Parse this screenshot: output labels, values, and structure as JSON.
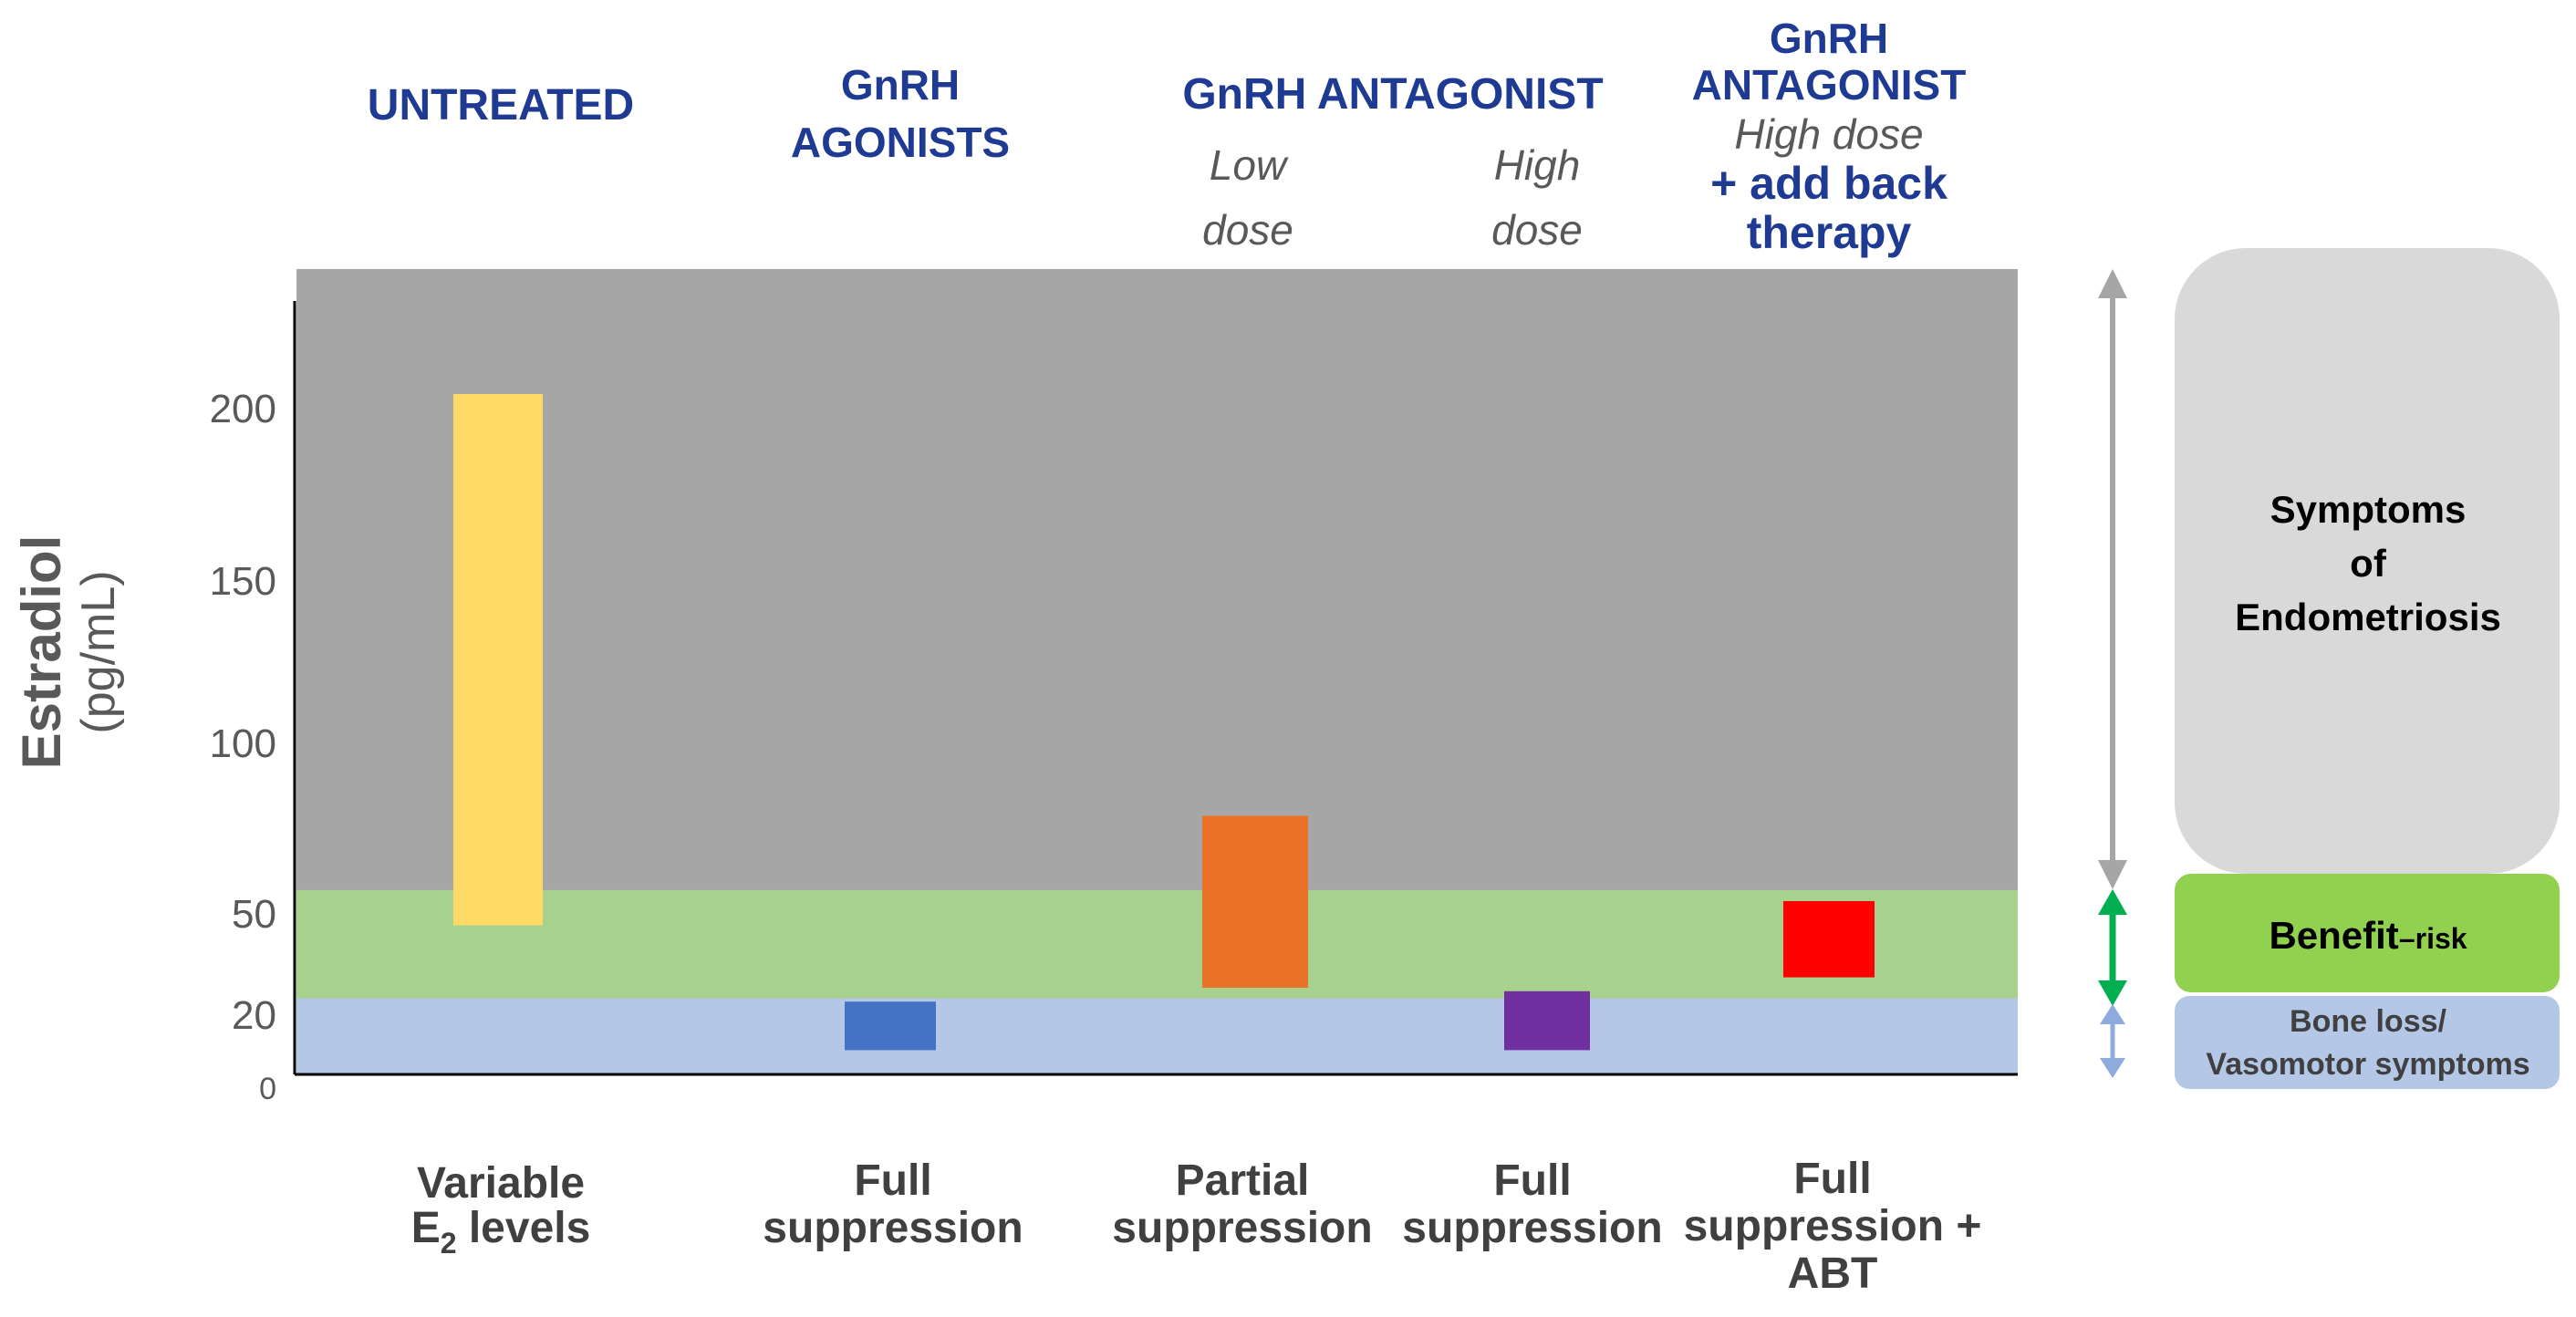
{
  "colors": {
    "plot_background": "#a6a6a6",
    "benefit_risk_band": "#a9d18e",
    "bone_loss_band": "#b4c7e7",
    "header_text": "#1f3a93",
    "axis_text": "#595959",
    "italic_text": "#595959",
    "bottom_label_text": "#404040",
    "symptoms_box": "#d9d9d9",
    "benefit_box": "#92d050",
    "bone_box": "#b4c7e7",
    "gray_arrow": "#a6a6a6",
    "green_arrow": "#00b050",
    "blue_arrow": "#8faadc"
  },
  "chart_data": {
    "type": "bar",
    "ylabel": "Estradiol",
    "ylabel_units": "(pg/mL)",
    "yticks": [
      {
        "value": 0,
        "label": "0"
      },
      {
        "value": 20,
        "label": "20"
      },
      {
        "value": 50,
        "label": "50"
      },
      {
        "value": 100,
        "label": "100"
      },
      {
        "value": 150,
        "label": "150"
      },
      {
        "value": 200,
        "label": "200"
      }
    ],
    "bands": [
      {
        "name": "bone-loss",
        "from": 0,
        "to": 22
      },
      {
        "name": "benefit-risk",
        "from": 22,
        "to": 53
      }
    ],
    "groups": [
      {
        "title_lines": [
          "UNTREATED"
        ],
        "subtitle_lines": [],
        "addon_lines": [],
        "bar": {
          "low": 43,
          "high": 200,
          "color": "#ffd966"
        },
        "bottom_lines": [
          "Variable",
          "E",
          "2",
          " levels"
        ]
      },
      {
        "title_lines": [
          "GnRH",
          "AGONISTS"
        ],
        "subtitle_lines": [],
        "addon_lines": [],
        "bar": {
          "low": 7,
          "high": 21,
          "color": "#4472c4"
        },
        "bottom_lines": [
          "Full",
          "suppression"
        ]
      },
      {
        "title_lines": [
          "GnRH ANTAGONIST"
        ],
        "subtitle_lines": [
          "Low",
          "dose"
        ],
        "addon_lines": [],
        "bar": {
          "low": 25,
          "high": 75,
          "color": "#e97128"
        },
        "bottom_lines": [
          "Partial",
          "suppression"
        ]
      },
      {
        "title_lines": [],
        "subtitle_lines": [
          "High",
          "dose"
        ],
        "addon_lines": [],
        "bar": {
          "low": 7,
          "high": 24,
          "color": "#7030a0"
        },
        "bottom_lines": [
          "Full",
          "suppression"
        ]
      },
      {
        "title_lines": [
          "GnRH",
          "ANTAGONIST"
        ],
        "subtitle_lines": [
          "High dose"
        ],
        "addon_lines": [
          "+ add back",
          "therapy"
        ],
        "bar": {
          "low": 28,
          "high": 50,
          "color": "#ff0000"
        },
        "bottom_lines": [
          "Full",
          "suppression +",
          "ABT"
        ]
      }
    ],
    "legend": {
      "symptoms_lines": [
        "Symptoms",
        "of",
        "Endometriosis"
      ],
      "benefit_main": "Benefit",
      "benefit_sub": "–risk",
      "bone_lines": [
        "Bone loss/",
        "Vasomotor symptoms"
      ]
    }
  }
}
